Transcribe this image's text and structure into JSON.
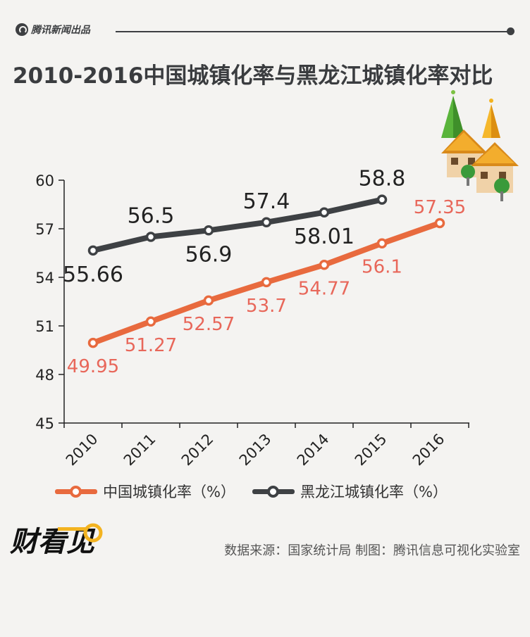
{
  "header": {
    "brand": "腾讯新闻出品",
    "title": "2010-2016中国城镇化率与黑龙江城镇化率对比"
  },
  "colors": {
    "china": "#e86a3e",
    "heilongjiang": "#3e4144",
    "label_china": "#e8675a",
    "label_heilongjiang": "#222222"
  },
  "chart_data": {
    "type": "line",
    "categories": [
      "2010",
      "2011",
      "2012",
      "2013",
      "2014",
      "2015",
      "2016"
    ],
    "ylim": [
      45,
      60
    ],
    "yticks": [
      45,
      48,
      51,
      54,
      57,
      60
    ],
    "series": [
      {
        "name": "中国城镇化率（%）",
        "values": [
          49.95,
          51.27,
          52.57,
          53.7,
          54.77,
          56.1,
          57.35
        ],
        "labels": [
          "49.95",
          "51.27",
          "52.57",
          "53.7",
          "54.77",
          "56.1",
          "57.35"
        ]
      },
      {
        "name": "黑龙江城镇化率（%）",
        "values": [
          55.66,
          56.5,
          56.9,
          57.4,
          58.01,
          58.8,
          null
        ],
        "labels": [
          "55.66",
          "56.5",
          "56.9",
          "57.4",
          "58.01",
          "58.8",
          null
        ]
      }
    ]
  },
  "footer": {
    "logo_text": "财看见",
    "source": "数据来源：国家统计局 制图：腾讯信息可视化实验室"
  }
}
